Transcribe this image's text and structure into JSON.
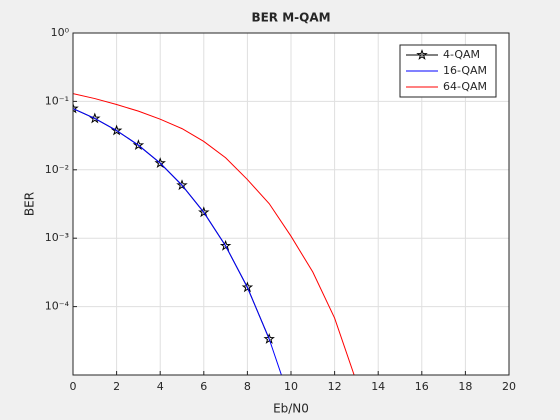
{
  "chart_data": {
    "type": "line",
    "title": "BER M-QAM",
    "x_label": "Eb/N0",
    "y_label": "BER",
    "log_y": true,
    "grid": true,
    "legend": "upper right",
    "xlim": [
      0,
      20
    ],
    "xticks": [
      0,
      2,
      4,
      6,
      8,
      10,
      12,
      14,
      16,
      18,
      20
    ],
    "ylim": [
      1e-05,
      1
    ],
    "yticks": [
      {
        "value": 1,
        "label": "10⁰"
      },
      {
        "value": 0.1,
        "label": "10⁻¹"
      },
      {
        "value": 0.01,
        "label": "10⁻²"
      },
      {
        "value": 0.001,
        "label": "10⁻³"
      },
      {
        "value": 0.0001,
        "label": "10⁻⁴"
      }
    ],
    "series": [
      {
        "name": "4-QAM",
        "color": "#000000",
        "marker": "pentagram",
        "x": [
          0,
          1,
          2,
          3,
          4,
          5,
          6,
          7,
          8,
          9
        ],
        "values": [
          0.0786,
          0.0563,
          0.0375,
          0.0229,
          0.0125,
          0.00595,
          0.00239,
          0.000773,
          0.000191,
          3.36e-05
        ]
      },
      {
        "name": "16-QAM",
        "color": "#0000ff",
        "x": [
          0,
          1,
          2,
          3,
          4,
          5,
          6,
          7,
          8,
          9,
          10
        ],
        "values": [
          0.0786,
          0.0563,
          0.0375,
          0.0229,
          0.0125,
          0.00595,
          0.00239,
          0.000773,
          0.000191,
          3.36e-05,
          3.87e-06
        ]
      },
      {
        "name": "64-QAM",
        "color": "#ff0000",
        "x": [
          0,
          1,
          2,
          3,
          4,
          5,
          6,
          7,
          8,
          9,
          10,
          11,
          12,
          13
        ],
        "values": [
          0.13,
          0.11,
          0.09,
          0.072,
          0.055,
          0.04,
          0.026,
          0.015,
          0.0072,
          0.0032,
          0.00107,
          0.00032,
          6.8e-05,
          8e-06
        ]
      }
    ]
  }
}
